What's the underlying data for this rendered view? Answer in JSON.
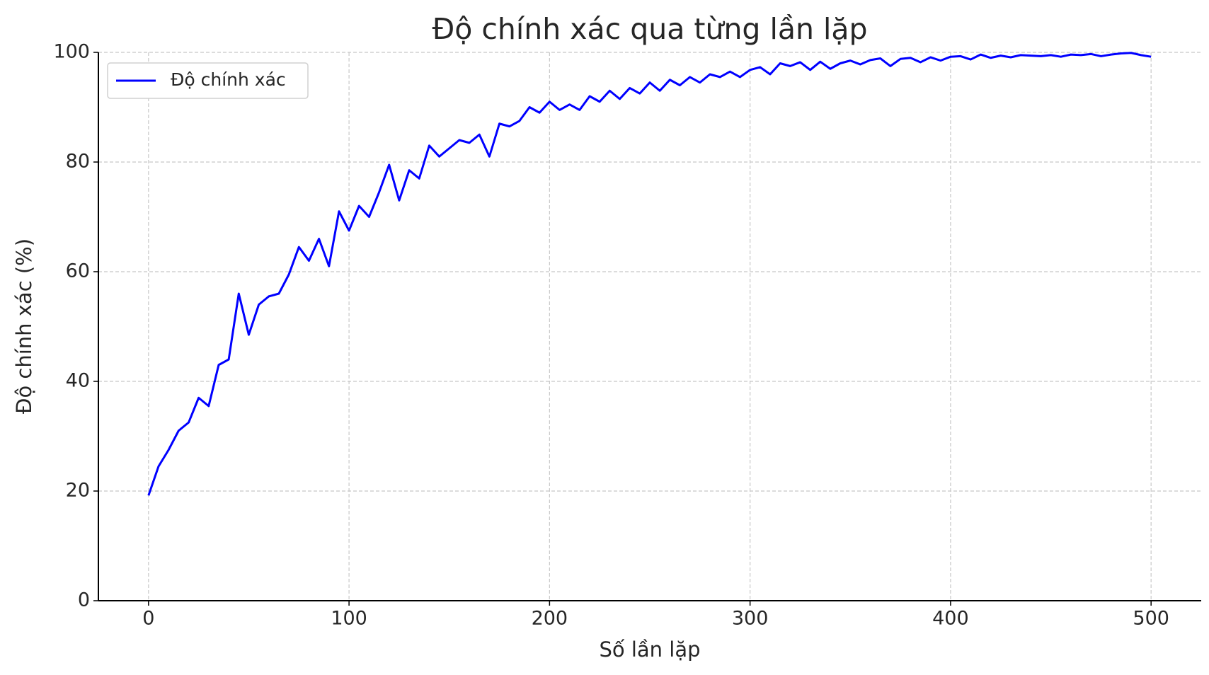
{
  "chart_data": {
    "type": "line",
    "title": "Độ chính xác qua từng lần lặp",
    "xlabel": "Số lần lặp",
    "ylabel": "Độ chính xác (%)",
    "x": [
      0,
      5,
      10,
      15,
      20,
      25,
      30,
      35,
      40,
      45,
      50,
      55,
      60,
      65,
      70,
      75,
      80,
      85,
      90,
      95,
      100,
      105,
      110,
      115,
      120,
      125,
      130,
      135,
      140,
      145,
      150,
      155,
      160,
      165,
      170,
      175,
      180,
      185,
      190,
      195,
      200,
      205,
      210,
      215,
      220,
      225,
      230,
      235,
      240,
      245,
      250,
      255,
      260,
      265,
      270,
      275,
      280,
      285,
      290,
      295,
      300,
      305,
      310,
      315,
      320,
      325,
      330,
      335,
      340,
      345,
      350,
      355,
      360,
      365,
      370,
      375,
      380,
      385,
      390,
      395,
      400,
      405,
      410,
      415,
      420,
      425,
      430,
      435,
      440,
      445,
      450,
      455,
      460,
      465,
      470,
      475,
      480,
      485,
      490,
      495,
      500
    ],
    "series": [
      {
        "name": "Độ chính xác",
        "color": "#0000ff",
        "values": [
          19.2,
          24.5,
          27.5,
          31,
          32.5,
          37,
          35.5,
          43,
          44,
          56,
          48.5,
          54,
          55.5,
          56,
          59.5,
          64.5,
          62,
          66,
          61,
          71,
          67.5,
          72,
          70,
          74.5,
          79.5,
          73,
          78.5,
          77,
          83,
          81,
          82.5,
          84,
          83.5,
          85,
          81,
          87,
          86.5,
          87.5,
          90,
          89,
          91,
          89.5,
          90.5,
          89.5,
          92,
          91,
          93,
          91.5,
          93.5,
          92.5,
          94.5,
          93,
          95,
          94,
          95.5,
          94.5,
          96,
          95.5,
          96.5,
          95.5,
          96.8,
          97.3,
          96,
          98,
          97.5,
          98.2,
          96.8,
          98.3,
          97,
          98,
          98.5,
          97.8,
          98.6,
          98.9,
          97.5,
          98.8,
          99,
          98.2,
          99.1,
          98.5,
          99.2,
          99.3,
          98.7,
          99.6,
          99,
          99.4,
          99.1,
          99.5,
          99.4,
          99.3,
          99.5,
          99.2,
          99.6,
          99.5,
          99.7,
          99.3,
          99.6,
          99.8,
          99.9,
          99.5,
          99.2
        ]
      }
    ],
    "xlim": [
      -25,
      525
    ],
    "ylim": [
      0,
      100
    ],
    "xticks": [
      0,
      100,
      200,
      300,
      400,
      500
    ],
    "yticks": [
      0,
      20,
      40,
      60,
      80,
      100
    ],
    "grid": true,
    "legend": "upper left"
  }
}
